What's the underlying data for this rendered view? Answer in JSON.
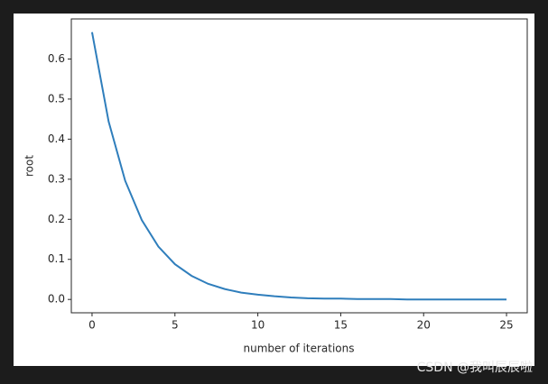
{
  "chart_data": {
    "type": "line",
    "xlabel": "number of iterations",
    "ylabel": "root",
    "x": [
      0,
      1,
      2,
      3,
      4,
      5,
      6,
      7,
      8,
      9,
      10,
      11,
      12,
      13,
      14,
      15,
      16,
      17,
      18,
      19,
      20,
      21,
      22,
      23,
      24,
      25
    ],
    "values": [
      0.667,
      0.444,
      0.296,
      0.198,
      0.132,
      0.088,
      0.059,
      0.039,
      0.026,
      0.017,
      0.012,
      0.008,
      0.005,
      0.003,
      0.002,
      0.002,
      0.001,
      0.001,
      0.001,
      0,
      0,
      0,
      0,
      0,
      0,
      0
    ],
    "color": "#2f7ebc",
    "xlim": [
      -1.25,
      26.25
    ],
    "xticks": [
      0,
      5,
      10,
      15,
      20,
      25
    ],
    "ylim": [
      -0.0333,
      0.7
    ],
    "yticks": [
      {
        "value": 0,
        "label": "0.0"
      },
      0.1,
      0.2,
      0.3,
      0.4,
      0.5,
      0.6
    ],
    "grid": false
  },
  "watermark": "CSDN @我叫辰辰啦"
}
